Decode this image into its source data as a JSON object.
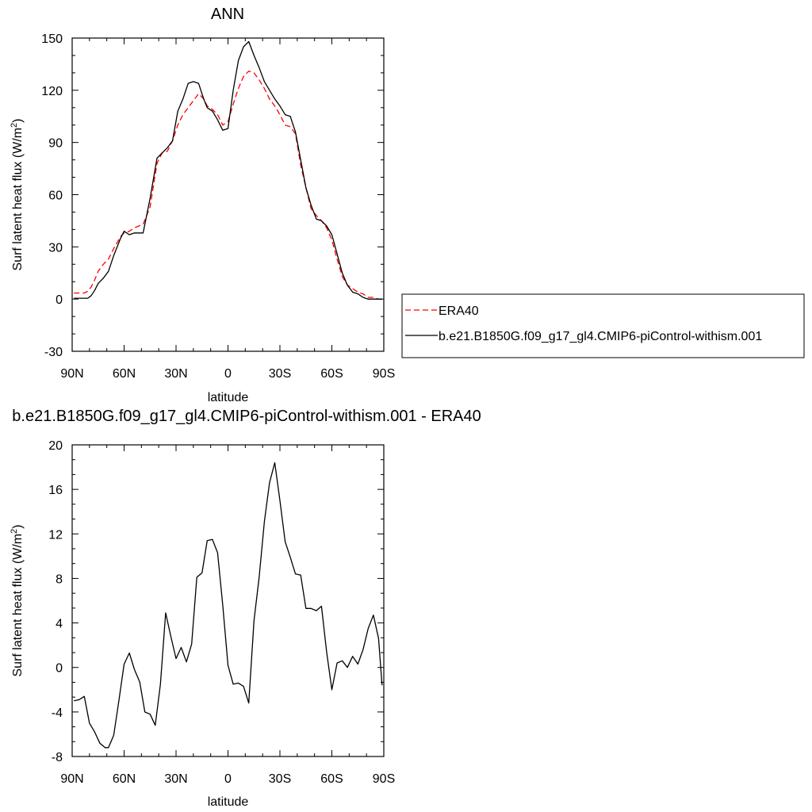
{
  "chart_data": [
    {
      "type": "line",
      "title": "ANN",
      "xlabel": "latitude",
      "ylabel": "Surf latent heat flux (W/m²)",
      "ylabel_main": "Surf latent heat flux (W/m",
      "ylabel_sup": "2",
      "ylabel_close": ")",
      "xlim": [
        90,
        -90
      ],
      "ylim": [
        -30,
        150
      ],
      "yticks": [
        -30,
        0,
        30,
        60,
        90,
        120,
        150
      ],
      "xticks": [
        90,
        60,
        30,
        0,
        -30,
        -60,
        -90
      ],
      "xticklabels": [
        "90N",
        "60N",
        "30N",
        "0",
        "30S",
        "60S",
        "90S"
      ],
      "grid": false,
      "legend_position": "right",
      "x": [
        89,
        86,
        83,
        81,
        79,
        77,
        75,
        72,
        69,
        66,
        62,
        60,
        57,
        54,
        49,
        45,
        41,
        38,
        35,
        32,
        29,
        26,
        23,
        20,
        17,
        14,
        12,
        9,
        6,
        3,
        0,
        -3,
        -6,
        -9,
        -12,
        -15,
        -18,
        -21,
        -24,
        -27,
        -30,
        -33,
        -36,
        -39,
        -42,
        -45,
        -48,
        -51,
        -54,
        -57,
        -60,
        -63,
        -66,
        -69,
        -72,
        -75,
        -78,
        -81,
        -84,
        -87,
        -89
      ],
      "series": [
        {
          "name": "ERA40",
          "color": "#ff0000",
          "dash": true,
          "values": [
            3.5,
            3.5,
            3.5,
            4.5,
            7,
            11,
            16,
            20,
            23,
            29,
            36,
            38,
            39,
            41,
            43,
            53,
            78,
            84,
            85,
            91,
            100,
            106,
            110,
            114,
            118,
            115,
            111,
            109,
            106,
            100,
            102,
            112,
            121,
            128,
            131,
            130,
            126,
            121,
            115,
            111,
            106,
            100,
            99,
            95,
            77,
            64,
            52,
            48,
            45,
            41,
            34,
            23,
            13,
            8,
            6,
            4,
            3,
            1,
            1,
            0,
            0
          ]
        },
        {
          "name": "b.e21.B1850G.f09_g17_gl4.CMIP6-piControl-withism.001",
          "color": "#000000",
          "dash": false,
          "values": [
            0.5,
            0.5,
            0.5,
            0.5,
            2,
            5,
            9,
            12,
            16,
            25,
            35,
            39,
            37,
            38,
            38,
            58,
            81,
            84,
            87,
            91,
            108,
            115,
            124,
            125,
            124,
            115,
            110,
            108,
            103,
            97,
            98,
            120,
            137,
            145,
            148,
            140,
            133,
            125,
            120,
            115,
            111,
            106,
            105,
            96,
            80,
            64,
            54,
            46,
            45,
            42,
            37,
            26,
            15,
            8,
            4,
            3,
            1,
            0,
            0,
            0,
            0
          ]
        }
      ]
    },
    {
      "type": "line",
      "title": "b.e21.B1850G.f09_g17_gl4.CMIP6-piControl-withism.001 - ERA40",
      "xlabel": "latitude",
      "ylabel": "Surf latent heat flux (W/m²)",
      "ylabel_main": "Surf latent heat flux (W/m",
      "ylabel_sup": "2",
      "ylabel_close": ")",
      "xlim": [
        90,
        -90
      ],
      "ylim": [
        -8,
        20
      ],
      "yticks": [
        -8,
        -4,
        0,
        4,
        8,
        12,
        16,
        20
      ],
      "xticks": [
        90,
        60,
        30,
        0,
        -30,
        -60,
        -90
      ],
      "xticklabels": [
        "90N",
        "60N",
        "30N",
        "0",
        "30S",
        "60S",
        "90S"
      ],
      "grid": false,
      "x": [
        89,
        86,
        83,
        80,
        77,
        74,
        71,
        69,
        66,
        63,
        60,
        57,
        54,
        51,
        48,
        45,
        42,
        39,
        36,
        33,
        30,
        27,
        24,
        21,
        18,
        15,
        12,
        9,
        6,
        3,
        0,
        -3,
        -6,
        -9,
        -12,
        -15,
        -18,
        -21,
        -24,
        -27,
        -30,
        -33,
        -36,
        -39,
        -42,
        -45,
        -48,
        -51,
        -54,
        -57,
        -60,
        -63,
        -66,
        -69,
        -72,
        -75,
        -78,
        -81,
        -84,
        -87,
        -89
      ],
      "series": [
        {
          "name": "",
          "color": "#000000",
          "dash": false,
          "values": [
            -3,
            -2.9,
            -2.6,
            -5,
            -5.8,
            -6.8,
            -7.2,
            -7.2,
            -6.1,
            -3,
            0.3,
            1.3,
            -0.2,
            -1.3,
            -4,
            -4.2,
            -5.2,
            -1.5,
            4.9,
            2.8,
            0.8,
            1.8,
            0.5,
            2.1,
            8.1,
            8.5,
            11.4,
            11.5,
            10.3,
            5.6,
            0.2,
            -1.5,
            -1.4,
            -1.7,
            -3.2,
            4.2,
            8.1,
            13.1,
            16.6,
            18.4,
            15,
            11.3,
            9.9,
            8.4,
            8.3,
            5.3,
            5.3,
            5.1,
            5.5,
            1.4,
            -2,
            0.4,
            0.6,
            0,
            1,
            0.3,
            1.6,
            3.5,
            4.7,
            2.6,
            -1.6
          ]
        }
      ]
    }
  ]
}
